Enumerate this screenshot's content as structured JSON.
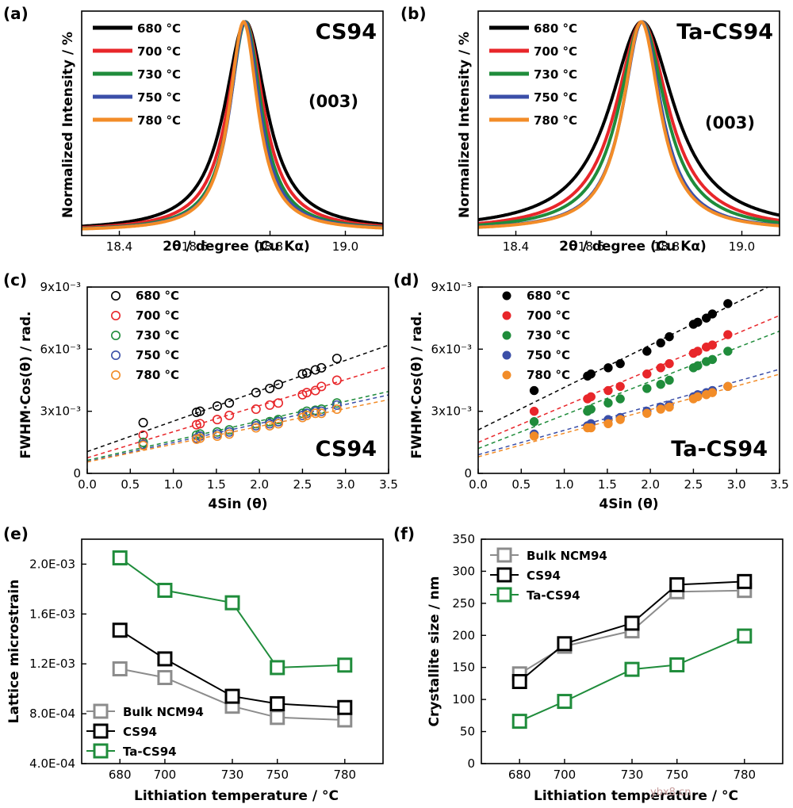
{
  "colors": {
    "t680": "#000000",
    "t700": "#e8262a",
    "t730": "#1f8c3b",
    "t750": "#3b4fa8",
    "t780": "#f28c28",
    "bulk": "#8c8c8c",
    "cs94": "#000000",
    "ta": "#1f8c3b"
  },
  "watermark": "ybx8.cn",
  "chart_data": [
    {
      "id": "a",
      "panel_label": "(a)",
      "type": "line",
      "title": "CS94",
      "annotation": "(003)",
      "xlabel": "2θ / degree (Cu Kα)",
      "ylabel": "Normalized Intensity / %",
      "xlim": [
        18.3,
        19.1
      ],
      "ylim": [
        0,
        1.05
      ],
      "xticks": [
        18.4,
        18.6,
        18.8,
        19.0
      ],
      "xtick_labels": [
        "18.4",
        "18.6",
        "18.8",
        "19.0"
      ],
      "series": [
        {
          "name": "680 °C",
          "color_key": "t680",
          "center": 18.735,
          "hwhm": 0.068
        },
        {
          "name": "700 °C",
          "color_key": "t700",
          "center": 18.735,
          "hwhm": 0.058
        },
        {
          "name": "730 °C",
          "color_key": "t730",
          "center": 18.735,
          "hwhm": 0.051
        },
        {
          "name": "750 °C",
          "color_key": "t750",
          "center": 18.733,
          "hwhm": 0.048
        },
        {
          "name": "780 °C",
          "color_key": "t780",
          "center": 18.73,
          "hwhm": 0.046
        }
      ]
    },
    {
      "id": "b",
      "panel_label": "(b)",
      "type": "line",
      "title": "Ta-CS94",
      "annotation": "(003)",
      "xlabel": "2θ / degree (Cu Kα)",
      "ylabel": "Normalized Intensity / %",
      "xlim": [
        18.3,
        19.1
      ],
      "ylim": [
        0,
        1.05
      ],
      "xticks": [
        18.4,
        18.6,
        18.8,
        19.0
      ],
      "xtick_labels": [
        "18.4",
        "18.6",
        "18.8",
        "19.0"
      ],
      "series": [
        {
          "name": "680 °C",
          "color_key": "t680",
          "center": 18.735,
          "hwhm": 0.105
        },
        {
          "name": "700 °C",
          "color_key": "t700",
          "center": 18.735,
          "hwhm": 0.085
        },
        {
          "name": "730 °C",
          "color_key": "t730",
          "center": 18.735,
          "hwhm": 0.075
        },
        {
          "name": "750 °C",
          "color_key": "t750",
          "center": 18.735,
          "hwhm": 0.062
        },
        {
          "name": "780 °C",
          "color_key": "t780",
          "center": 18.733,
          "hwhm": 0.06
        }
      ]
    },
    {
      "id": "c",
      "panel_label": "(c)",
      "type": "scatter",
      "title": "CS94",
      "marker": "open",
      "xlabel": "4Sin (θ)",
      "ylabel": "FWHM·Cos(θ) / rad.",
      "xlim": [
        0,
        3.5
      ],
      "ylim": [
        0,
        0.009
      ],
      "xticks": [
        0,
        0.5,
        1.0,
        1.5,
        2.0,
        2.5,
        3.0,
        3.5
      ],
      "xtick_labels": [
        "0.0",
        "0.5",
        "1.0",
        "1.5",
        "2.0",
        "2.5",
        "3.0",
        "3.5"
      ],
      "yticks": [
        0,
        0.003,
        0.006,
        0.009
      ],
      "ytick_labels": [
        "0",
        "3x10⁻³",
        "6x10⁻³",
        "9x10⁻³"
      ],
      "x": [
        0.65,
        1.27,
        1.31,
        1.51,
        1.65,
        1.96,
        2.12,
        2.22,
        2.5,
        2.55,
        2.65,
        2.72,
        2.9
      ],
      "series": [
        {
          "name": "680 °C",
          "color_key": "t680",
          "intercept": 0.00105,
          "slope": 0.00147,
          "y": [
            0.00245,
            0.00295,
            0.003,
            0.00325,
            0.0034,
            0.0039,
            0.0041,
            0.0043,
            0.0048,
            0.00485,
            0.005,
            0.0051,
            0.00555
          ]
        },
        {
          "name": "700 °C",
          "color_key": "t700",
          "intercept": 0.00075,
          "slope": 0.00126,
          "y": [
            0.00185,
            0.00235,
            0.0024,
            0.0026,
            0.0028,
            0.0031,
            0.0033,
            0.0034,
            0.0038,
            0.0039,
            0.004,
            0.0042,
            0.0045
          ]
        },
        {
          "name": "730 °C",
          "color_key": "t730",
          "intercept": 0.00063,
          "slope": 0.00095,
          "y": [
            0.0015,
            0.00185,
            0.0019,
            0.002,
            0.0021,
            0.0024,
            0.0025,
            0.0026,
            0.0029,
            0.003,
            0.00305,
            0.0031,
            0.0034
          ]
        },
        {
          "name": "750 °C",
          "color_key": "t750",
          "intercept": 0.00057,
          "slope": 0.00092,
          "y": [
            0.0014,
            0.0017,
            0.0018,
            0.0019,
            0.002,
            0.0023,
            0.0024,
            0.0025,
            0.0028,
            0.0029,
            0.003,
            0.003,
            0.0033
          ]
        },
        {
          "name": "780 °C",
          "color_key": "t780",
          "intercept": 0.00055,
          "slope": 0.00086,
          "y": [
            0.00135,
            0.00165,
            0.0017,
            0.0018,
            0.0019,
            0.0022,
            0.0023,
            0.0024,
            0.0027,
            0.0028,
            0.0029,
            0.0029,
            0.0031
          ]
        }
      ]
    },
    {
      "id": "d",
      "panel_label": "(d)",
      "type": "scatter",
      "title": "Ta-CS94",
      "marker": "filled",
      "xlabel": "4Sin (θ)",
      "ylabel": "FWHM·Cos(θ) / rad.",
      "xlim": [
        0,
        3.5
      ],
      "ylim": [
        0,
        0.009
      ],
      "xticks": [
        0,
        0.5,
        1.0,
        1.5,
        2.0,
        2.5,
        3.0,
        3.5
      ],
      "xtick_labels": [
        "0.0",
        "0.5",
        "1.0",
        "1.5",
        "2.0",
        "2.5",
        "3.0",
        "3.5"
      ],
      "yticks": [
        0,
        0.003,
        0.006,
        0.009
      ],
      "ytick_labels": [
        "0",
        "3x10⁻³",
        "6x10⁻³",
        "9x10⁻³"
      ],
      "x": [
        0.65,
        1.27,
        1.31,
        1.51,
        1.65,
        1.96,
        2.12,
        2.22,
        2.5,
        2.55,
        2.65,
        2.72,
        2.9
      ],
      "series": [
        {
          "name": "680 °C",
          "color_key": "t680",
          "intercept": 0.0021,
          "slope": 0.00205,
          "y": [
            0.004,
            0.0047,
            0.0048,
            0.0051,
            0.0053,
            0.0059,
            0.0063,
            0.0066,
            0.0072,
            0.0073,
            0.0075,
            0.0077,
            0.0082
          ]
        },
        {
          "name": "700 °C",
          "color_key": "t700",
          "intercept": 0.0015,
          "slope": 0.00175,
          "y": [
            0.003,
            0.0036,
            0.0037,
            0.004,
            0.0042,
            0.0048,
            0.0051,
            0.0053,
            0.0058,
            0.0059,
            0.0061,
            0.0062,
            0.0067
          ]
        },
        {
          "name": "730 °C",
          "color_key": "t730",
          "intercept": 0.0012,
          "slope": 0.00162,
          "y": [
            0.0025,
            0.003,
            0.0031,
            0.0034,
            0.0036,
            0.0041,
            0.0043,
            0.0045,
            0.0051,
            0.0052,
            0.0054,
            0.0055,
            0.0059
          ]
        },
        {
          "name": "750 °C",
          "color_key": "t750",
          "intercept": 0.0009,
          "slope": 0.00118,
          "y": [
            0.0019,
            0.0023,
            0.0024,
            0.0026,
            0.0027,
            0.003,
            0.0032,
            0.0033,
            0.0037,
            0.0038,
            0.0039,
            0.004,
            0.0042
          ]
        },
        {
          "name": "780 °C",
          "color_key": "t780",
          "intercept": 0.0008,
          "slope": 0.00114,
          "y": [
            0.0018,
            0.0022,
            0.0022,
            0.0024,
            0.0026,
            0.0029,
            0.0031,
            0.0032,
            0.0036,
            0.0037,
            0.0038,
            0.0039,
            0.0042
          ]
        }
      ]
    },
    {
      "id": "e",
      "panel_label": "(e)",
      "type": "line",
      "xlabel": "Lithiation temperature / °C",
      "ylabel": "Lattice microstrain",
      "x": [
        680,
        700,
        730,
        750,
        780
      ],
      "xlim": [
        663,
        797
      ],
      "ylim": [
        0.0004,
        0.0022
      ],
      "xtick_labels": [
        "680",
        "700",
        "730",
        "750",
        "780"
      ],
      "yticks": [
        0.0004,
        0.0008,
        0.0012,
        0.0016,
        0.002
      ],
      "ytick_labels": [
        "4.0E-04",
        "8.0E-04",
        "1.2E-03",
        "1.6E-03",
        "2.0E-03"
      ],
      "series": [
        {
          "name": "Bulk NCM94",
          "color_key": "bulk",
          "values": [
            0.00116,
            0.00109,
            0.00086,
            0.00077,
            0.00075
          ]
        },
        {
          "name": "CS94",
          "color_key": "cs94",
          "values": [
            0.00147,
            0.00124,
            0.00094,
            0.00088,
            0.00085
          ]
        },
        {
          "name": "Ta-CS94",
          "color_key": "ta",
          "values": [
            0.00205,
            0.00179,
            0.00169,
            0.00117,
            0.00119
          ]
        }
      ]
    },
    {
      "id": "f",
      "panel_label": "(f)",
      "type": "line",
      "xlabel": "Lithiation temperature / °C",
      "ylabel": "Crystallite size / nm",
      "x": [
        680,
        700,
        730,
        750,
        780
      ],
      "xlim": [
        663,
        797
      ],
      "ylim": [
        0,
        350
      ],
      "xtick_labels": [
        "680",
        "700",
        "730",
        "750",
        "780"
      ],
      "yticks": [
        0,
        50,
        100,
        150,
        200,
        250,
        300,
        350
      ],
      "ytick_labels": [
        "0",
        "50",
        "100",
        "150",
        "200",
        "250",
        "300",
        "350"
      ],
      "series": [
        {
          "name": "Bulk NCM94",
          "color_key": "bulk",
          "values": [
            140,
            183,
            207,
            268,
            270
          ]
        },
        {
          "name": "CS94",
          "color_key": "cs94",
          "values": [
            128,
            187,
            219,
            279,
            284
          ]
        },
        {
          "name": "Ta-CS94",
          "color_key": "ta",
          "values": [
            66,
            97,
            147,
            154,
            199
          ]
        }
      ]
    }
  ]
}
